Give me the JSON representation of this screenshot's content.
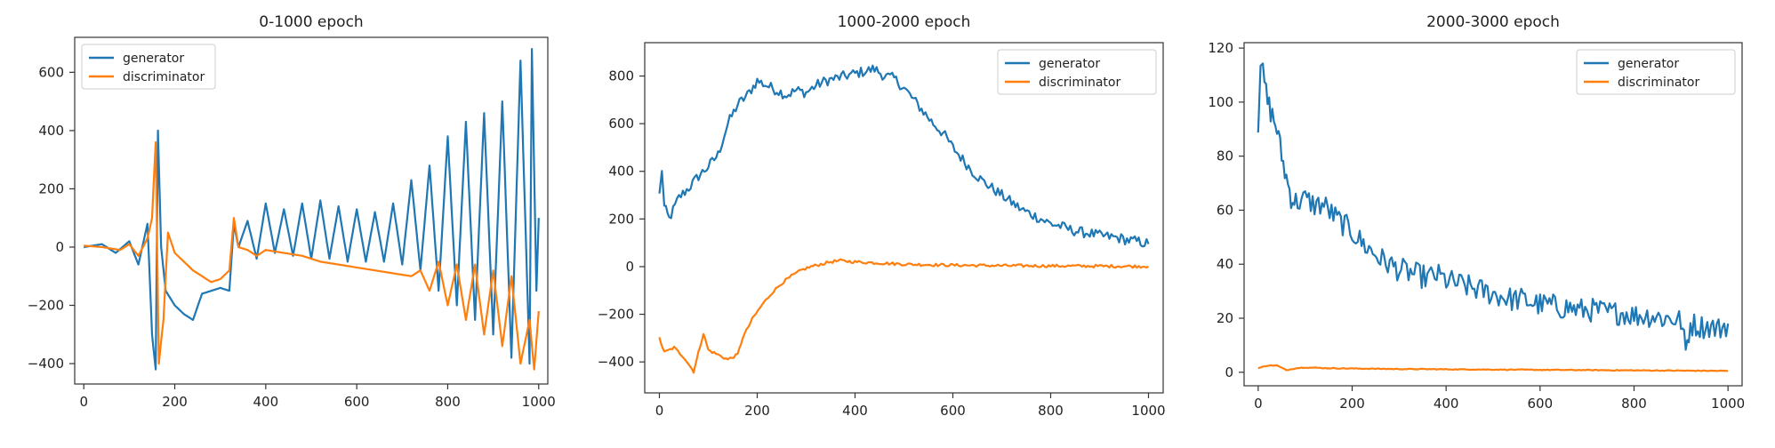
{
  "colors": {
    "generator": "#1f77b4",
    "discriminator": "#ff7f0e",
    "axes": "#333333",
    "text": "#222222"
  },
  "chart_data": [
    {
      "type": "line",
      "title": "0-1000 epoch",
      "xlabel": "",
      "ylabel": "",
      "xlim": [
        -20,
        1020
      ],
      "ylim": [
        -470,
        720
      ],
      "xticks": [
        0,
        200,
        400,
        600,
        800,
        1000
      ],
      "yticks": [
        -400,
        -200,
        0,
        200,
        400,
        600
      ],
      "legend": "upper-left",
      "series": [
        {
          "name": "generator",
          "color_key": "generator",
          "points": [
            [
              0,
              0
            ],
            [
              40,
              10
            ],
            [
              70,
              -20
            ],
            [
              100,
              20
            ],
            [
              120,
              -60
            ],
            [
              140,
              80
            ],
            [
              150,
              -300
            ],
            [
              158,
              -420
            ],
            [
              163,
              400
            ],
            [
              170,
              0
            ],
            [
              180,
              -150
            ],
            [
              200,
              -200
            ],
            [
              220,
              -230
            ],
            [
              240,
              -250
            ],
            [
              260,
              -160
            ],
            [
              300,
              -140
            ],
            [
              320,
              -150
            ],
            [
              330,
              80
            ],
            [
              340,
              0
            ],
            [
              360,
              90
            ],
            [
              380,
              -40
            ],
            [
              400,
              150
            ],
            [
              420,
              -20
            ],
            [
              440,
              130
            ],
            [
              460,
              -30
            ],
            [
              480,
              150
            ],
            [
              500,
              -40
            ],
            [
              520,
              160
            ],
            [
              540,
              -40
            ],
            [
              560,
              140
            ],
            [
              580,
              -50
            ],
            [
              600,
              130
            ],
            [
              620,
              -50
            ],
            [
              640,
              120
            ],
            [
              660,
              -50
            ],
            [
              680,
              150
            ],
            [
              700,
              -60
            ],
            [
              720,
              230
            ],
            [
              740,
              -80
            ],
            [
              760,
              280
            ],
            [
              780,
              -150
            ],
            [
              800,
              380
            ],
            [
              820,
              -200
            ],
            [
              840,
              430
            ],
            [
              860,
              -250
            ],
            [
              880,
              460
            ],
            [
              900,
              -300
            ],
            [
              920,
              500
            ],
            [
              940,
              -380
            ],
            [
              960,
              640
            ],
            [
              980,
              -400
            ],
            [
              985,
              680
            ],
            [
              995,
              -150
            ],
            [
              1000,
              100
            ]
          ]
        },
        {
          "name": "discriminator",
          "color_key": "discriminator",
          "points": [
            [
              0,
              5
            ],
            [
              40,
              0
            ],
            [
              80,
              -10
            ],
            [
              100,
              10
            ],
            [
              120,
              -30
            ],
            [
              140,
              30
            ],
            [
              150,
              100
            ],
            [
              158,
              360
            ],
            [
              165,
              -400
            ],
            [
              175,
              -250
            ],
            [
              185,
              50
            ],
            [
              200,
              -20
            ],
            [
              240,
              -80
            ],
            [
              280,
              -120
            ],
            [
              300,
              -110
            ],
            [
              320,
              -80
            ],
            [
              330,
              100
            ],
            [
              340,
              0
            ],
            [
              360,
              -10
            ],
            [
              380,
              -30
            ],
            [
              400,
              -10
            ],
            [
              440,
              -20
            ],
            [
              480,
              -30
            ],
            [
              520,
              -50
            ],
            [
              560,
              -60
            ],
            [
              600,
              -70
            ],
            [
              640,
              -80
            ],
            [
              680,
              -90
            ],
            [
              720,
              -100
            ],
            [
              740,
              -80
            ],
            [
              760,
              -150
            ],
            [
              780,
              -50
            ],
            [
              800,
              -200
            ],
            [
              820,
              -60
            ],
            [
              840,
              -250
            ],
            [
              860,
              -60
            ],
            [
              880,
              -300
            ],
            [
              900,
              -80
            ],
            [
              920,
              -340
            ],
            [
              940,
              -100
            ],
            [
              960,
              -400
            ],
            [
              980,
              -250
            ],
            [
              990,
              -420
            ],
            [
              1000,
              -220
            ]
          ]
        }
      ]
    },
    {
      "type": "line",
      "title": "1000-2000 epoch",
      "xlabel": "",
      "ylabel": "",
      "xlim": [
        -30,
        1030
      ],
      "ylim": [
        -530,
        940
      ],
      "xticks": [
        0,
        200,
        400,
        600,
        800,
        1000
      ],
      "yticks": [
        -400,
        -200,
        0,
        200,
        400,
        600,
        800
      ],
      "legend": "upper-right",
      "series": [
        {
          "name": "generator",
          "color_key": "generator",
          "points": [
            [
              0,
              300
            ],
            [
              5,
              410
            ],
            [
              10,
              250
            ],
            [
              20,
              200
            ],
            [
              40,
              290
            ],
            [
              60,
              330
            ],
            [
              80,
              380
            ],
            [
              100,
              420
            ],
            [
              120,
              470
            ],
            [
              140,
              600
            ],
            [
              160,
              680
            ],
            [
              180,
              720
            ],
            [
              200,
              780
            ],
            [
              220,
              760
            ],
            [
              240,
              740
            ],
            [
              260,
              720
            ],
            [
              280,
              740
            ],
            [
              300,
              730
            ],
            [
              320,
              760
            ],
            [
              340,
              780
            ],
            [
              360,
              790
            ],
            [
              380,
              800
            ],
            [
              400,
              810
            ],
            [
              420,
              820
            ],
            [
              440,
              830
            ],
            [
              460,
              800
            ],
            [
              480,
              790
            ],
            [
              500,
              750
            ],
            [
              520,
              700
            ],
            [
              540,
              650
            ],
            [
              560,
              600
            ],
            [
              580,
              560
            ],
            [
              600,
              500
            ],
            [
              620,
              450
            ],
            [
              640,
              400
            ],
            [
              660,
              360
            ],
            [
              680,
              330
            ],
            [
              700,
              300
            ],
            [
              720,
              270
            ],
            [
              740,
              240
            ],
            [
              760,
              220
            ],
            [
              780,
              200
            ],
            [
              800,
              180
            ],
            [
              820,
              170
            ],
            [
              840,
              155
            ],
            [
              860,
              145
            ],
            [
              880,
              140
            ],
            [
              900,
              130
            ],
            [
              920,
              125
            ],
            [
              940,
              120
            ],
            [
              960,
              110
            ],
            [
              980,
              105
            ],
            [
              1000,
              95
            ]
          ]
        },
        {
          "name": "discriminator",
          "color_key": "discriminator",
          "points": [
            [
              0,
              -300
            ],
            [
              10,
              -360
            ],
            [
              30,
              -340
            ],
            [
              50,
              -380
            ],
            [
              70,
              -440
            ],
            [
              80,
              -360
            ],
            [
              90,
              -280
            ],
            [
              100,
              -350
            ],
            [
              120,
              -370
            ],
            [
              140,
              -390
            ],
            [
              160,
              -370
            ],
            [
              170,
              -300
            ],
            [
              190,
              -220
            ],
            [
              210,
              -160
            ],
            [
              230,
              -110
            ],
            [
              250,
              -70
            ],
            [
              270,
              -40
            ],
            [
              290,
              -15
            ],
            [
              310,
              0
            ],
            [
              330,
              10
            ],
            [
              350,
              20
            ],
            [
              370,
              25
            ],
            [
              400,
              20
            ],
            [
              450,
              15
            ],
            [
              500,
              10
            ],
            [
              550,
              8
            ],
            [
              600,
              6
            ],
            [
              700,
              4
            ],
            [
              800,
              3
            ],
            [
              900,
              2
            ],
            [
              1000,
              1
            ]
          ]
        }
      ]
    },
    {
      "type": "line",
      "title": "2000-3000 epoch",
      "xlabel": "",
      "ylabel": "",
      "xlim": [
        -30,
        1030
      ],
      "ylim": [
        -5,
        122
      ],
      "xticks": [
        0,
        200,
        400,
        600,
        800,
        1000
      ],
      "yticks": [
        0,
        20,
        40,
        60,
        80,
        100,
        120
      ],
      "legend": "upper-right",
      "series": [
        {
          "name": "generator",
          "color_key": "generator",
          "points": [
            [
              0,
              92
            ],
            [
              5,
              115
            ],
            [
              10,
              110
            ],
            [
              20,
              100
            ],
            [
              30,
              95
            ],
            [
              40,
              90
            ],
            [
              50,
              80
            ],
            [
              60,
              72
            ],
            [
              70,
              65
            ],
            [
              80,
              63
            ],
            [
              100,
              64
            ],
            [
              120,
              62
            ],
            [
              140,
              62
            ],
            [
              160,
              58
            ],
            [
              180,
              55
            ],
            [
              200,
              52
            ],
            [
              220,
              48
            ],
            [
              240,
              45
            ],
            [
              260,
              42
            ],
            [
              280,
              40
            ],
            [
              300,
              38
            ],
            [
              320,
              37
            ],
            [
              340,
              36
            ],
            [
              360,
              35
            ],
            [
              380,
              36
            ],
            [
              400,
              34
            ],
            [
              420,
              33
            ],
            [
              440,
              32
            ],
            [
              460,
              31
            ],
            [
              480,
              30
            ],
            [
              500,
              29
            ],
            [
              520,
              28
            ],
            [
              540,
              27
            ],
            [
              560,
              27
            ],
            [
              580,
              26
            ],
            [
              600,
              25
            ],
            [
              620,
              25
            ],
            [
              640,
              24
            ],
            [
              660,
              24
            ],
            [
              680,
              23
            ],
            [
              700,
              23
            ],
            [
              720,
              23
            ],
            [
              740,
              22
            ],
            [
              760,
              22
            ],
            [
              780,
              22
            ],
            [
              800,
              21
            ],
            [
              820,
              21
            ],
            [
              840,
              21
            ],
            [
              860,
              20
            ],
            [
              880,
              20
            ],
            [
              900,
              19
            ],
            [
              910,
              8
            ],
            [
              920,
              18
            ],
            [
              940,
              17
            ],
            [
              960,
              17
            ],
            [
              980,
              16
            ],
            [
              1000,
              18
            ]
          ]
        },
        {
          "name": "discriminator",
          "color_key": "discriminator",
          "points": [
            [
              0,
              1.5
            ],
            [
              20,
              2.5
            ],
            [
              40,
              2.5
            ],
            [
              60,
              0.8
            ],
            [
              80,
              1.5
            ],
            [
              100,
              1.8
            ],
            [
              150,
              1.5
            ],
            [
              200,
              1.4
            ],
            [
              300,
              1.2
            ],
            [
              400,
              1.1
            ],
            [
              500,
              1.0
            ],
            [
              600,
              0.9
            ],
            [
              700,
              0.8
            ],
            [
              800,
              0.7
            ],
            [
              900,
              0.6
            ],
            [
              1000,
              0.5
            ]
          ]
        }
      ]
    }
  ]
}
